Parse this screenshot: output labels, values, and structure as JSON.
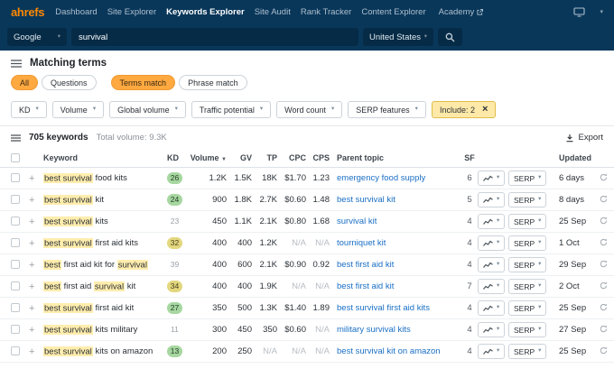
{
  "colors": {
    "brand_orange": "#ff8800",
    "navbar_navy": "#09375a",
    "link_blue": "#1a6fc4",
    "kd_green": "#a6d7a0",
    "kd_yellow": "#e3d77f",
    "highlight_yellow": "#ffedad",
    "include_chip_yellow": "#ffe9a8"
  },
  "nav": {
    "logo": "ahrefs",
    "items": [
      {
        "label": "Dashboard",
        "active": false
      },
      {
        "label": "Site Explorer",
        "active": false
      },
      {
        "label": "Keywords Explorer",
        "active": true
      },
      {
        "label": "Site Audit",
        "active": false
      },
      {
        "label": "Rank Tracker",
        "active": false
      },
      {
        "label": "Content Explorer",
        "active": false
      }
    ],
    "academy": "Academy"
  },
  "search": {
    "engine": "Google",
    "query": "survival",
    "country": "United States"
  },
  "page": {
    "title": "Matching terms"
  },
  "tabs": {
    "groups": [
      [
        {
          "label": "All",
          "active": true
        },
        {
          "label": "Questions",
          "active": false
        }
      ],
      [
        {
          "label": "Terms match",
          "active": true
        },
        {
          "label": "Phrase match",
          "active": false
        }
      ]
    ]
  },
  "filters": [
    "KD",
    "Volume",
    "Global volume",
    "Traffic potential",
    "Word count",
    "SERP features"
  ],
  "include_chip": "Include: 2",
  "results": {
    "count": "705 keywords",
    "total_volume": "Total volume: 9.3K",
    "export_label": "Export"
  },
  "table": {
    "columns": {
      "keyword": "Keyword",
      "kd": "KD",
      "volume": "Volume",
      "gv": "GV",
      "tp": "TP",
      "cpc": "CPC",
      "cps": "CPS",
      "parent": "Parent topic",
      "sf": "SF",
      "updated": "Updated"
    },
    "serp_label": "SERP",
    "rows": [
      {
        "keyword": [
          [
            "best survival",
            1
          ],
          [
            " food kits",
            0
          ]
        ],
        "kd": "26",
        "kd_color": "green",
        "volume": "1.2K",
        "gv": "1.5K",
        "tp": "18K",
        "cpc": "$1.70",
        "cps": "1.23",
        "parent": "emergency food supply",
        "sf": "6",
        "updated": "6 days"
      },
      {
        "keyword": [
          [
            "best survival",
            1
          ],
          [
            " kit",
            0
          ]
        ],
        "kd": "24",
        "kd_color": "green",
        "volume": "900",
        "gv": "1.8K",
        "tp": "2.7K",
        "cpc": "$0.60",
        "cps": "1.48",
        "parent": "best survival kit",
        "sf": "5",
        "updated": "8 days"
      },
      {
        "keyword": [
          [
            "best survival",
            1
          ],
          [
            " kits",
            0
          ]
        ],
        "kd": "23",
        "kd_color": "none",
        "volume": "450",
        "gv": "1.1K",
        "tp": "2.1K",
        "cpc": "$0.80",
        "cps": "1.68",
        "parent": "survival kit",
        "sf": "4",
        "updated": "25 Sep"
      },
      {
        "keyword": [
          [
            "best survival",
            1
          ],
          [
            " first aid kits",
            0
          ]
        ],
        "kd": "32",
        "kd_color": "yellow",
        "volume": "400",
        "gv": "400",
        "tp": "1.2K",
        "cpc": "N/A",
        "cps": "N/A",
        "parent": "tourniquet kit",
        "sf": "4",
        "updated": "1 Oct"
      },
      {
        "keyword": [
          [
            "best",
            1
          ],
          [
            " first aid kit for ",
            0
          ],
          [
            "survival",
            1
          ]
        ],
        "kd": "39",
        "kd_color": "none",
        "volume": "400",
        "gv": "600",
        "tp": "2.1K",
        "cpc": "$0.90",
        "cps": "0.92",
        "parent": "best first aid kit",
        "sf": "4",
        "updated": "29 Sep"
      },
      {
        "keyword": [
          [
            "best",
            1
          ],
          [
            " first aid ",
            0
          ],
          [
            "survival",
            1
          ],
          [
            " kit",
            0
          ]
        ],
        "kd": "34",
        "kd_color": "yellow",
        "volume": "400",
        "gv": "400",
        "tp": "1.9K",
        "cpc": "N/A",
        "cps": "N/A",
        "parent": "best first aid kit",
        "sf": "7",
        "updated": "2 Oct"
      },
      {
        "keyword": [
          [
            "best survival",
            1
          ],
          [
            " first aid kit",
            0
          ]
        ],
        "kd": "27",
        "kd_color": "green",
        "volume": "350",
        "gv": "500",
        "tp": "1.3K",
        "cpc": "$1.40",
        "cps": "1.89",
        "parent": "best survival first aid kits",
        "sf": "4",
        "updated": "25 Sep"
      },
      {
        "keyword": [
          [
            "best survival",
            1
          ],
          [
            " kits military",
            0
          ]
        ],
        "kd": "11",
        "kd_color": "none",
        "volume": "300",
        "gv": "450",
        "tp": "350",
        "cpc": "$0.60",
        "cps": "N/A",
        "parent": "military survival kits",
        "sf": "4",
        "updated": "27 Sep"
      },
      {
        "keyword": [
          [
            "best survival",
            1
          ],
          [
            " kits on amazon",
            0
          ]
        ],
        "kd": "13",
        "kd_color": "green",
        "volume": "200",
        "gv": "250",
        "tp": "N/A",
        "cpc": "N/A",
        "cps": "N/A",
        "parent": "best survival kit on amazon",
        "sf": "4",
        "updated": "25 Sep"
      }
    ]
  }
}
